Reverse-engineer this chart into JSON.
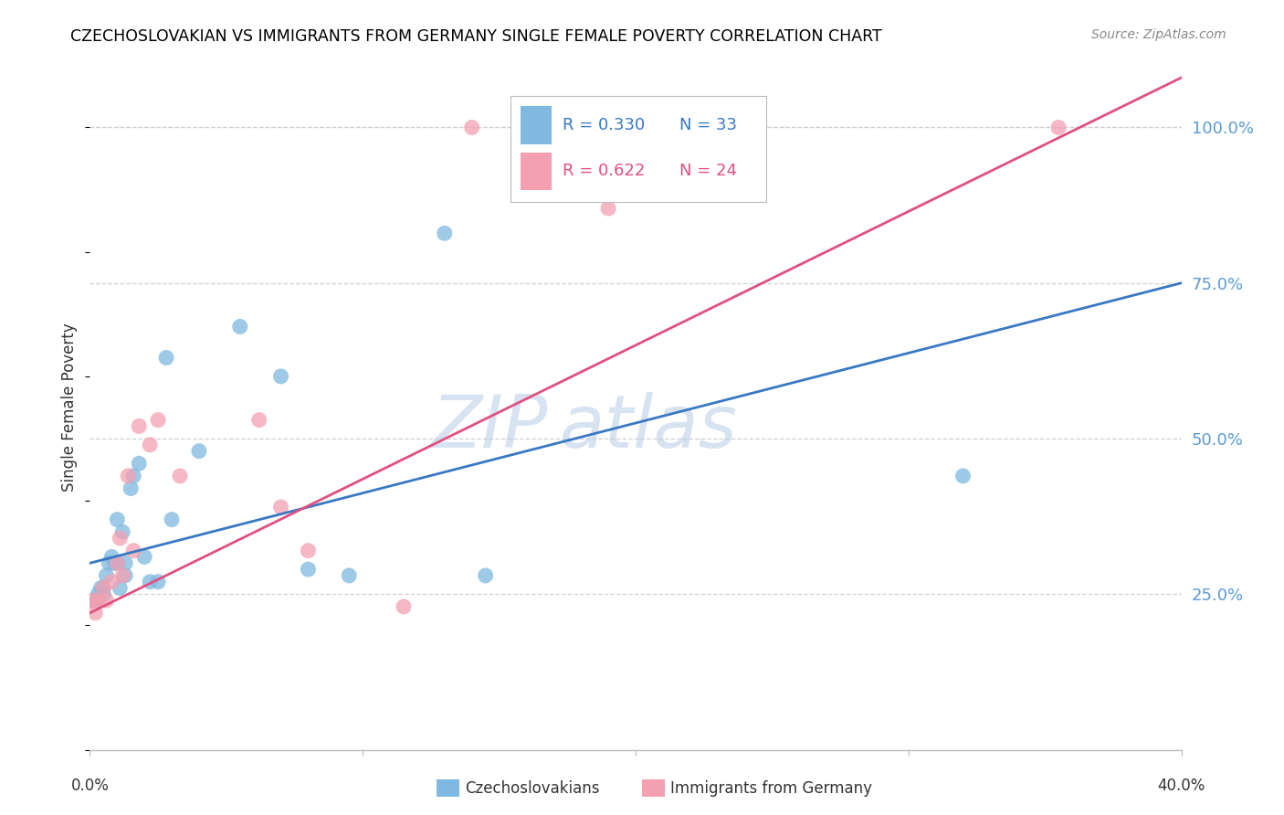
{
  "title": "CZECHOSLOVAKIAN VS IMMIGRANTS FROM GERMANY SINGLE FEMALE POVERTY CORRELATION CHART",
  "source": "Source: ZipAtlas.com",
  "ylabel": "Single Female Poverty",
  "ytick_labels": [
    "100.0%",
    "75.0%",
    "50.0%",
    "25.0%"
  ],
  "ytick_values": [
    1.0,
    0.75,
    0.5,
    0.25
  ],
  "xlim": [
    0.0,
    0.4
  ],
  "ylim": [
    0.0,
    1.1
  ],
  "blue_R": "R = 0.330",
  "blue_N": "N = 33",
  "pink_R": "R = 0.622",
  "pink_N": "N = 24",
  "blue_color": "#7fb9e0",
  "pink_color": "#f4a0b0",
  "blue_line_color": "#3878c4",
  "pink_line_color": "#e05080",
  "watermark_zip": "ZIP",
  "watermark_atlas": "atlas",
  "legend_label_blue": "Czechoslovakians",
  "legend_label_pink": "Immigrants from Germany",
  "blue_scatter_x": [
    0.001,
    0.002,
    0.003,
    0.003,
    0.004,
    0.005,
    0.005,
    0.006,
    0.007,
    0.008,
    0.009,
    0.01,
    0.01,
    0.011,
    0.012,
    0.013,
    0.013,
    0.015,
    0.016,
    0.018,
    0.02,
    0.022,
    0.025,
    0.028,
    0.03,
    0.04,
    0.055,
    0.07,
    0.08,
    0.095,
    0.13,
    0.145,
    0.32
  ],
  "blue_scatter_y": [
    0.24,
    0.24,
    0.25,
    0.24,
    0.26,
    0.25,
    0.26,
    0.28,
    0.3,
    0.31,
    0.3,
    0.3,
    0.37,
    0.26,
    0.35,
    0.28,
    0.3,
    0.42,
    0.44,
    0.46,
    0.31,
    0.27,
    0.27,
    0.63,
    0.37,
    0.48,
    0.68,
    0.6,
    0.29,
    0.28,
    0.83,
    0.28,
    0.44
  ],
  "pink_scatter_x": [
    0.001,
    0.002,
    0.003,
    0.005,
    0.006,
    0.008,
    0.01,
    0.011,
    0.012,
    0.014,
    0.016,
    0.018,
    0.022,
    0.025,
    0.033,
    0.062,
    0.07,
    0.08,
    0.115,
    0.14,
    0.16,
    0.19,
    0.21,
    0.355
  ],
  "pink_scatter_y": [
    0.24,
    0.22,
    0.24,
    0.26,
    0.24,
    0.27,
    0.3,
    0.34,
    0.28,
    0.44,
    0.32,
    0.52,
    0.49,
    0.53,
    0.44,
    0.53,
    0.39,
    0.32,
    0.23,
    1.0,
    1.0,
    0.87,
    1.0,
    1.0
  ],
  "blue_line_x0": 0.0,
  "blue_line_x1": 0.4,
  "blue_line_y0": 0.3,
  "blue_line_y1": 0.75,
  "pink_line_x0": 0.0,
  "pink_line_x1": 0.4,
  "pink_line_y0": 0.22,
  "pink_line_y1": 1.08,
  "grid_color": "#d0d0d0",
  "bg_color": "#ffffff",
  "ytick_color": "#5b9bd5",
  "xtick_label_color": "#333333"
}
